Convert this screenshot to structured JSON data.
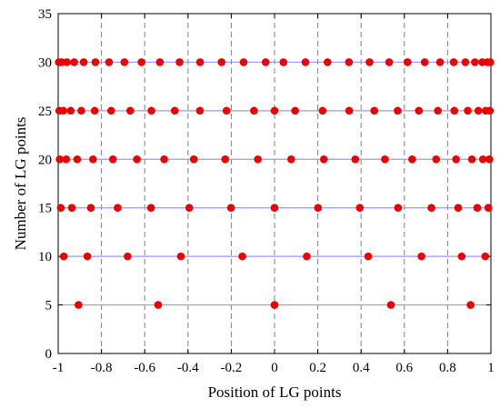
{
  "chart_data": {
    "type": "scatter",
    "title": "",
    "xlabel": "Position of LG points",
    "ylabel": "Number of LG points",
    "xlim": [
      -1,
      1
    ],
    "ylim": [
      0,
      35
    ],
    "xticks": [
      "-1",
      "-0.8",
      "-0.6",
      "-0.4",
      "-0.2",
      "0",
      "0.2",
      "0.4",
      "0.6",
      "0.8",
      "1"
    ],
    "yticks": [
      "0",
      "5",
      "10",
      "15",
      "20",
      "25",
      "30",
      "35"
    ],
    "xgrid": true,
    "xgrid_style": "dashed",
    "horizontal_reference_lines_at": [
      5,
      10,
      15,
      20,
      25,
      30
    ],
    "marker_color": "#ee0000",
    "line_color": "#9999ee",
    "series": [
      {
        "y": 5,
        "x": [
          -0.906,
          -0.538,
          0.0,
          0.538,
          0.906
        ]
      },
      {
        "y": 10,
        "x": [
          -0.974,
          -0.865,
          -0.679,
          -0.433,
          -0.149,
          0.149,
          0.433,
          0.679,
          0.865,
          0.974
        ]
      },
      {
        "y": 15,
        "x": [
          -0.988,
          -0.937,
          -0.849,
          -0.725,
          -0.571,
          -0.394,
          -0.201,
          0.0,
          0.201,
          0.394,
          0.571,
          0.725,
          0.849,
          0.937,
          0.988
        ]
      },
      {
        "y": 20,
        "x": [
          -0.993,
          -0.963,
          -0.912,
          -0.839,
          -0.747,
          -0.636,
          -0.51,
          -0.373,
          -0.228,
          -0.077,
          0.077,
          0.228,
          0.373,
          0.51,
          0.636,
          0.747,
          0.839,
          0.912,
          0.963,
          0.993
        ]
      },
      {
        "y": 25,
        "x": [
          -0.995,
          -0.976,
          -0.942,
          -0.893,
          -0.831,
          -0.755,
          -0.667,
          -0.569,
          -0.461,
          -0.345,
          -0.222,
          -0.095,
          0.0,
          0.095,
          0.222,
          0.345,
          0.461,
          0.569,
          0.667,
          0.755,
          0.831,
          0.893,
          0.942,
          0.976,
          0.995
        ]
      },
      {
        "y": 30,
        "x": [
          -0.997,
          -0.984,
          -0.96,
          -0.926,
          -0.882,
          -0.828,
          -0.765,
          -0.694,
          -0.615,
          -0.53,
          -0.439,
          -0.344,
          -0.245,
          -0.143,
          -0.041,
          0.041,
          0.143,
          0.245,
          0.344,
          0.439,
          0.53,
          0.615,
          0.694,
          0.765,
          0.828,
          0.882,
          0.926,
          0.96,
          0.984,
          0.997
        ]
      }
    ]
  }
}
